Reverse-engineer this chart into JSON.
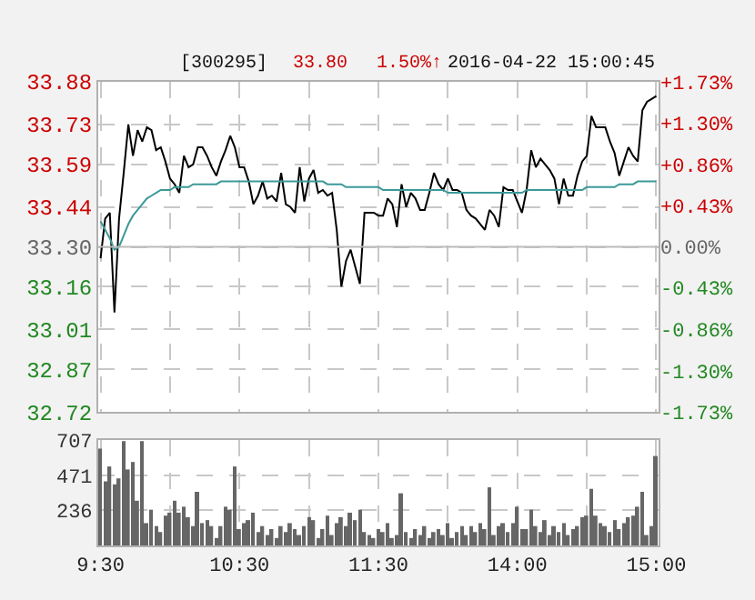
{
  "chart_data": [
    {
      "type": "line",
      "annotations": [
        "[300295]",
        "33.80",
        "1.50%↑",
        "2016-04-22 15:00:45"
      ],
      "categories": [
        null,
        null,
        null,
        null,
        null,
        null,
        null,
        null,
        null,
        null,
        null,
        null,
        null,
        null,
        null,
        null,
        null,
        null,
        null,
        null,
        null,
        null,
        null,
        null,
        null,
        null,
        null,
        null,
        null,
        null,
        null,
        null,
        null,
        null,
        null,
        null,
        null,
        null,
        null,
        null,
        null,
        null,
        null,
        null,
        null,
        null,
        null,
        null,
        null,
        null,
        null,
        null,
        null,
        null,
        null,
        null,
        null,
        null,
        null,
        null,
        null,
        null,
        null,
        null,
        null,
        null,
        null,
        null,
        null,
        null,
        null,
        null,
        null,
        null,
        null,
        null,
        null,
        null,
        null,
        null,
        null,
        null,
        null,
        null,
        null,
        null,
        null,
        null,
        null,
        null,
        null,
        null,
        null,
        null,
        null,
        null,
        null,
        null,
        null,
        null,
        null,
        null,
        null,
        null,
        null,
        null,
        null,
        null,
        null,
        null,
        null,
        null,
        null,
        null,
        null,
        null,
        null,
        null,
        null,
        null,
        null
      ],
      "series": [
        {
          "color": "#000000",
          "values": [
            33.26,
            33.4,
            33.42,
            33.07,
            33.4,
            33.56,
            33.73,
            33.62,
            33.71,
            33.67,
            33.72,
            33.71,
            33.64,
            33.65,
            33.6,
            33.54,
            33.52,
            33.49,
            33.62,
            33.58,
            33.59,
            33.65,
            33.65,
            33.62,
            33.58,
            33.55,
            33.6,
            33.64,
            33.69,
            33.65,
            33.58,
            33.58,
            33.53,
            33.45,
            33.48,
            33.53,
            33.47,
            33.48,
            33.46,
            33.56,
            33.45,
            33.44,
            33.42,
            33.58,
            33.46,
            33.54,
            33.57,
            33.49,
            33.5,
            33.48,
            33.49,
            33.36,
            33.16,
            33.25,
            33.29,
            33.23,
            33.17,
            33.42,
            33.42,
            33.42,
            33.41,
            33.41,
            33.47,
            33.45,
            33.37,
            33.52,
            33.44,
            33.49,
            33.47,
            33.43,
            33.43,
            33.49,
            33.56,
            33.52,
            33.5,
            33.54,
            33.5,
            33.5,
            33.49,
            33.43,
            33.41,
            33.4,
            33.38,
            33.36,
            33.43,
            33.41,
            33.37,
            33.51,
            33.5,
            33.5,
            33.46,
            33.42,
            33.5,
            33.64,
            33.58,
            33.61,
            33.59,
            33.57,
            33.54,
            33.45,
            33.54,
            33.48,
            33.48,
            33.55,
            33.6,
            33.62,
            33.76,
            33.72,
            33.72,
            33.72,
            33.67,
            33.63,
            33.55,
            33.6,
            33.65,
            33.62,
            33.6,
            33.78,
            33.81,
            33.82,
            33.83
          ]
        },
        {
          "color": "#3c9999",
          "values": [
            33.39,
            33.36,
            33.33,
            33.29,
            33.3,
            33.34,
            33.38,
            33.41,
            33.43,
            33.45,
            33.47,
            33.48,
            33.49,
            33.5,
            33.5,
            33.5,
            33.51,
            33.51,
            33.51,
            33.51,
            33.52,
            33.52,
            33.52,
            33.52,
            33.52,
            33.52,
            33.53,
            33.53,
            33.53,
            33.53,
            33.53,
            33.53,
            33.53,
            33.53,
            33.53,
            33.53,
            33.53,
            33.53,
            33.53,
            33.53,
            33.53,
            33.53,
            33.53,
            33.53,
            33.53,
            33.53,
            33.53,
            33.53,
            33.53,
            33.52,
            33.52,
            33.52,
            33.52,
            33.51,
            33.51,
            33.51,
            33.51,
            33.51,
            33.51,
            33.51,
            33.51,
            33.5,
            33.5,
            33.5,
            33.5,
            33.5,
            33.5,
            33.5,
            33.5,
            33.5,
            33.5,
            33.5,
            33.5,
            33.5,
            33.5,
            33.49,
            33.49,
            33.49,
            33.49,
            33.49,
            33.49,
            33.49,
            33.49,
            33.49,
            33.49,
            33.49,
            33.49,
            33.49,
            33.49,
            33.49,
            33.49,
            33.49,
            33.5,
            33.5,
            33.5,
            33.5,
            33.5,
            33.5,
            33.5,
            33.5,
            33.5,
            33.5,
            33.5,
            33.5,
            33.5,
            33.51,
            33.51,
            33.51,
            33.51,
            33.51,
            33.51,
            33.51,
            33.52,
            33.52,
            33.52,
            33.52,
            33.53,
            33.53,
            33.53,
            33.53,
            33.53
          ]
        }
      ],
      "ylim": [
        32.72,
        33.88
      ],
      "yticks": [
        32.72,
        32.87,
        33.01,
        33.16,
        {
          "value": 33.3,
          "label": "33.30"
        },
        33.44,
        33.59,
        33.73,
        33.88
      ],
      "y2lim": [
        -1.73,
        1.73
      ],
      "y2ticks": [
        {
          "value": -1.73,
          "label": "-1.73%"
        },
        {
          "value": -1.3,
          "label": "-1.30%"
        },
        {
          "value": -0.86,
          "label": "-0.86%"
        },
        {
          "value": -0.43,
          "label": "-0.43%"
        },
        {
          "value": 0,
          "label": "0.00%"
        },
        {
          "value": 0.43,
          "label": "+0.43%"
        },
        {
          "value": 0.86,
          "label": "+0.86%"
        },
        {
          "value": 1.3,
          "label": "+1.30%"
        },
        {
          "value": 1.73,
          "label": "+1.73%"
        }
      ],
      "ref_lines": [
        {
          "axis": "y",
          "value": 33.3,
          "color": "#bbbbbb",
          "line_style": "solid"
        }
      ],
      "grid": true,
      "tick_labels": "y",
      "line_style": "solid",
      "marker": "none"
    },
    {
      "type": "bar",
      "color": "#666666",
      "categories": [
        "9:30",
        null,
        null,
        null,
        null,
        null,
        null,
        null,
        null,
        null,
        null,
        null,
        null,
        null,
        null,
        null,
        null,
        null,
        null,
        null,
        null,
        null,
        null,
        null,
        null,
        null,
        null,
        null,
        null,
        null,
        "10:30",
        null,
        null,
        null,
        null,
        null,
        null,
        null,
        null,
        null,
        null,
        null,
        null,
        null,
        null,
        null,
        null,
        null,
        null,
        null,
        null,
        null,
        null,
        null,
        null,
        null,
        null,
        null,
        null,
        null,
        "11:30",
        null,
        null,
        null,
        null,
        null,
        null,
        null,
        null,
        null,
        null,
        null,
        null,
        null,
        null,
        null,
        null,
        null,
        null,
        null,
        null,
        null,
        null,
        null,
        null,
        null,
        null,
        null,
        null,
        null,
        "14:00",
        null,
        null,
        null,
        null,
        null,
        null,
        null,
        null,
        null,
        null,
        null,
        null,
        null,
        null,
        null,
        null,
        null,
        null,
        null,
        null,
        null,
        null,
        null,
        null,
        null,
        null,
        null,
        null,
        null,
        "15:00"
      ],
      "values": [
        650,
        430,
        530,
        410,
        450,
        700,
        510,
        560,
        300,
        700,
        150,
        240,
        130,
        90,
        200,
        220,
        300,
        220,
        260,
        190,
        130,
        360,
        150,
        170,
        130,
        50,
        130,
        260,
        240,
        530,
        110,
        150,
        170,
        220,
        90,
        130,
        70,
        110,
        50,
        130,
        90,
        150,
        110,
        70,
        130,
        190,
        170,
        50,
        110,
        200,
        70,
        150,
        190,
        130,
        220,
        170,
        240,
        90,
        70,
        50,
        110,
        90,
        150,
        50,
        70,
        350,
        90,
        50,
        110,
        70,
        130,
        50,
        90,
        110,
        70,
        150,
        50,
        90,
        130,
        70,
        130,
        90,
        150,
        110,
        390,
        70,
        130,
        150,
        90,
        150,
        260,
        110,
        110,
        240,
        130,
        90,
        170,
        70,
        130,
        90,
        150,
        70,
        110,
        130,
        190,
        200,
        380,
        200,
        150,
        130,
        90,
        170,
        110,
        150,
        190,
        200,
        260,
        360,
        70,
        130,
        600
      ],
      "ylim": [
        0,
        707
      ],
      "yticks": [
        236,
        471,
        707
      ],
      "grid": true
    }
  ]
}
